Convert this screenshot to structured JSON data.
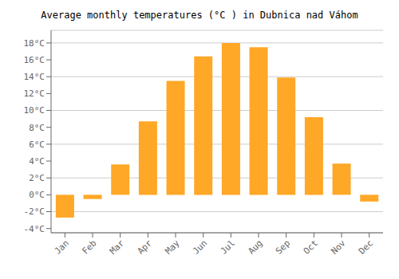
{
  "chart_data": {
    "type": "bar",
    "title": "Average monthly temperatures (°C ) in Dubnica nad Váhom",
    "categories": [
      "Jan",
      "Feb",
      "Mar",
      "Apr",
      "May",
      "Jun",
      "Jul",
      "Aug",
      "Sep",
      "Oct",
      "Nov",
      "Dec"
    ],
    "values": [
      -2.7,
      -0.5,
      3.6,
      8.7,
      13.5,
      16.4,
      18.0,
      17.5,
      13.9,
      9.2,
      3.7,
      -0.8
    ],
    "color": "#FFA726",
    "ylim": [
      -4.5,
      19.5
    ],
    "yticks": [
      {
        "value": -4,
        "label": "-4°C"
      },
      {
        "value": -2,
        "label": "-2°C"
      },
      {
        "value": 0,
        "label": "0°C"
      },
      {
        "value": 2,
        "label": "2°C"
      },
      {
        "value": 4,
        "label": "4°C"
      },
      {
        "value": 6,
        "label": "6°C"
      },
      {
        "value": 8,
        "label": "8°C"
      },
      {
        "value": 10,
        "label": "10°C"
      },
      {
        "value": 12,
        "label": "12°C"
      },
      {
        "value": 14,
        "label": "14°C"
      },
      {
        "value": 16,
        "label": "16°C"
      },
      {
        "value": 18,
        "label": "18°C"
      }
    ],
    "grid": true
  }
}
